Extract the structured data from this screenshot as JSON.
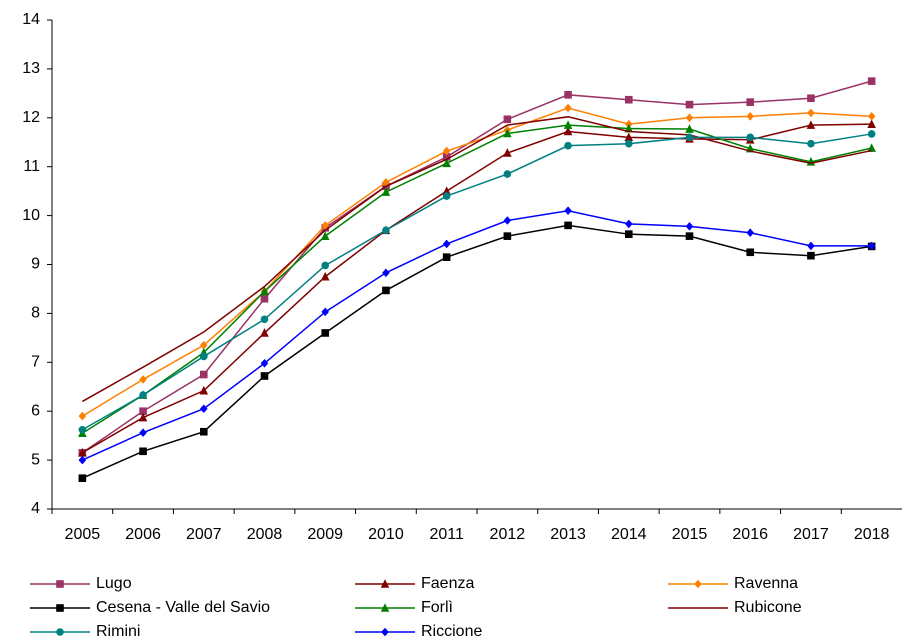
{
  "chart_data": {
    "type": "line",
    "categories": [
      "2005",
      "2006",
      "2007",
      "2008",
      "2009",
      "2010",
      "2011",
      "2012",
      "2013",
      "2014",
      "2015",
      "2016",
      "2017",
      "2018"
    ],
    "ylim": [
      4,
      14
    ],
    "yticks": [
      4,
      5,
      6,
      7,
      8,
      9,
      10,
      11,
      12,
      13,
      14
    ],
    "grid": false,
    "series": [
      {
        "name": "Lugo",
        "color": "#993366",
        "marker": "square",
        "values": [
          5.15,
          6.0,
          6.75,
          8.3,
          9.75,
          10.6,
          11.2,
          11.97,
          12.47,
          12.37,
          12.27,
          12.32,
          12.4,
          12.75
        ]
      },
      {
        "name": "Faenza",
        "color": "#800000",
        "marker": "triangle",
        "values": [
          5.15,
          5.87,
          6.42,
          7.6,
          8.75,
          9.7,
          10.5,
          11.28,
          11.72,
          11.6,
          11.57,
          11.55,
          11.85,
          11.87
        ]
      },
      {
        "name": "Ravenna",
        "color": "#ff8000",
        "marker": "diamond",
        "values": [
          5.9,
          6.65,
          7.35,
          8.45,
          9.8,
          10.68,
          11.32,
          11.75,
          12.2,
          11.87,
          12.0,
          12.03,
          12.1,
          12.03
        ]
      },
      {
        "name": "Cesena - Valle del Savio",
        "color": "#000000",
        "marker": "square",
        "values": [
          4.63,
          5.18,
          5.58,
          6.72,
          7.6,
          8.47,
          9.15,
          9.58,
          9.8,
          9.62,
          9.58,
          9.25,
          9.18,
          9.37
        ]
      },
      {
        "name": "Forlì",
        "color": "#008000",
        "marker": "triangle",
        "values": [
          5.55,
          6.33,
          7.2,
          8.45,
          9.58,
          10.48,
          11.07,
          11.68,
          11.85,
          11.78,
          11.77,
          11.37,
          11.1,
          11.38
        ]
      },
      {
        "name": "Rubicone",
        "color": "#800000",
        "marker": "none",
        "values": [
          6.2,
          6.9,
          7.62,
          8.55,
          9.7,
          10.6,
          11.15,
          11.85,
          12.02,
          11.72,
          11.65,
          11.32,
          11.07,
          11.33
        ]
      },
      {
        "name": "Rimini",
        "color": "#008080",
        "marker": "circle",
        "values": [
          5.62,
          6.33,
          7.12,
          7.88,
          8.98,
          9.7,
          10.4,
          10.85,
          11.43,
          11.47,
          11.6,
          11.6,
          11.47,
          11.67
        ]
      },
      {
        "name": "Riccione",
        "color": "#0000ff",
        "marker": "diamond",
        "values": [
          5.0,
          5.56,
          6.05,
          6.98,
          8.03,
          8.83,
          9.42,
          9.9,
          10.1,
          9.83,
          9.78,
          9.65,
          9.38,
          9.38
        ]
      }
    ]
  }
}
